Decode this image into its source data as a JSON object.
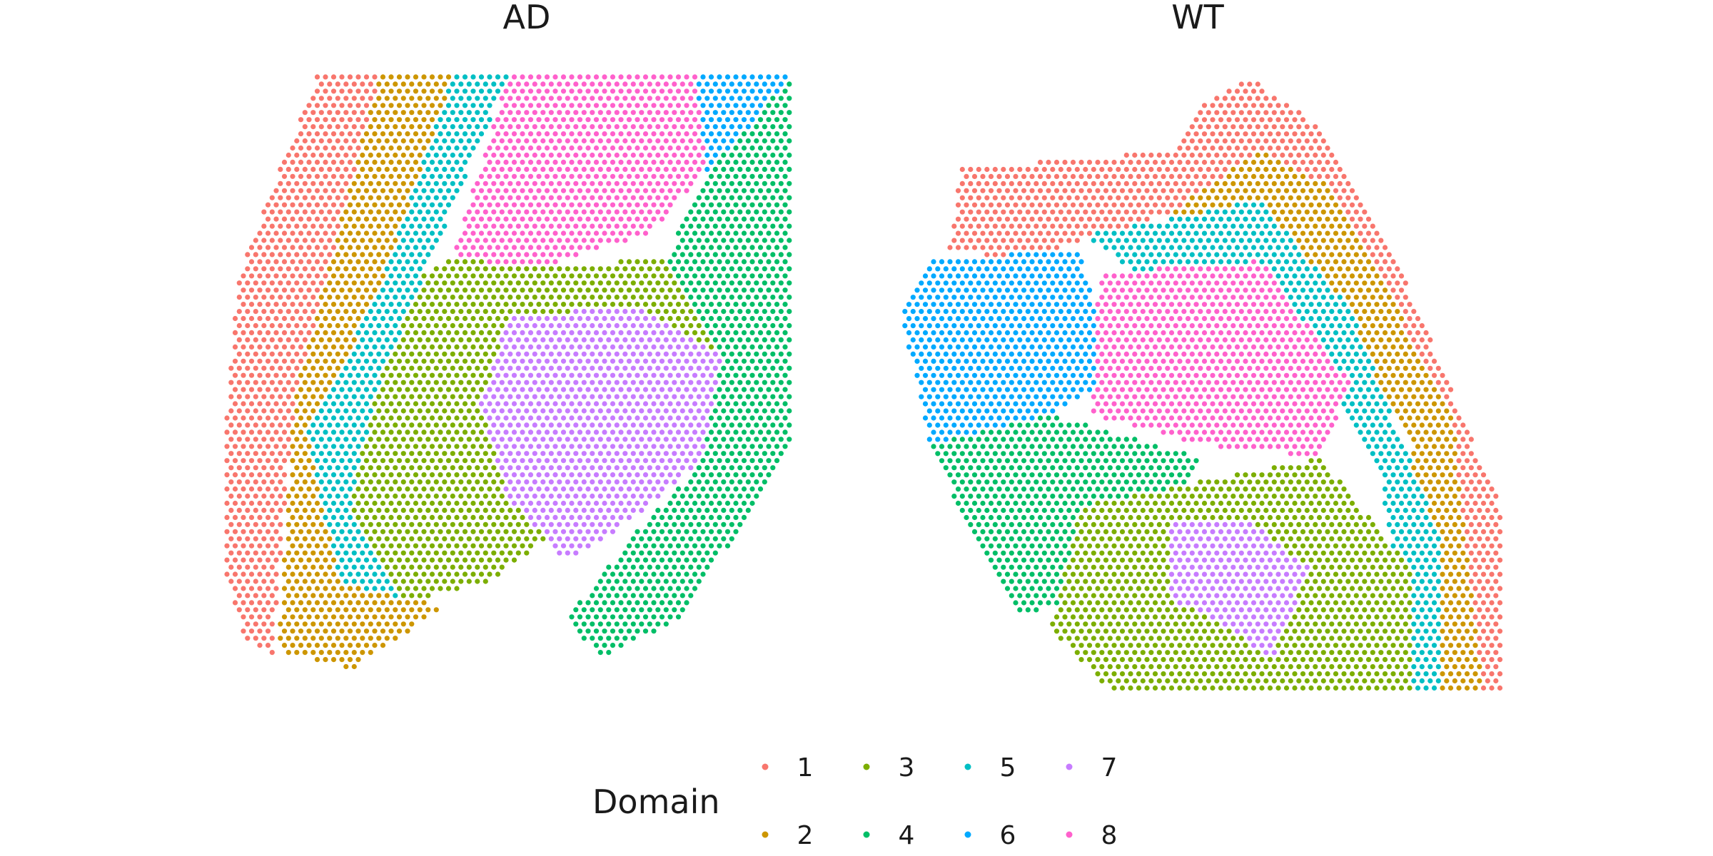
{
  "chart_data": {
    "type": "scatter",
    "title": "",
    "xlabel": "",
    "ylabel": "",
    "grid": false,
    "legend": {
      "title": "Domain",
      "placement": "bottom",
      "entries": [
        {
          "label": "1",
          "color": "#F8766D"
        },
        {
          "label": "2",
          "color": "#CD9600"
        },
        {
          "label": "3",
          "color": "#7CAE00"
        },
        {
          "label": "4",
          "color": "#00BE67"
        },
        {
          "label": "5",
          "color": "#00BFC4"
        },
        {
          "label": "6",
          "color": "#00A9FF"
        },
        {
          "label": "7",
          "color": "#C77CFF"
        },
        {
          "label": "8",
          "color": "#FF61CC"
        }
      ]
    },
    "panels": [
      {
        "title": "AD",
        "description_of_domains": "Spatial spots colored by domain label",
        "regions": [
          {
            "domain": "1",
            "polygon": [
              [
                0.16,
                0.02
              ],
              [
                0.27,
                0.02
              ],
              [
                0.12,
                0.55
              ],
              [
                0.08,
                0.98
              ],
              [
                0.03,
                0.95
              ],
              [
                -0.02,
                0.78
              ],
              [
                0.02,
                0.35
              ]
            ]
          },
          {
            "domain": "2",
            "polygon": [
              [
                0.27,
                0.02
              ],
              [
                0.4,
                0.02
              ],
              [
                0.26,
                0.4
              ],
              [
                0.2,
                0.85
              ],
              [
                0.33,
                0.88
              ],
              [
                0.38,
                0.9
              ],
              [
                0.22,
                1.0
              ],
              [
                0.09,
                0.97
              ],
              [
                0.12,
                0.55
              ]
            ]
          },
          {
            "domain": "5",
            "polygon": [
              [
                0.4,
                0.02
              ],
              [
                0.5,
                0.02
              ],
              [
                0.35,
                0.35
              ],
              [
                0.22,
                0.74
              ],
              [
                0.3,
                0.88
              ],
              [
                0.2,
                0.86
              ],
              [
                0.14,
                0.6
              ],
              [
                0.26,
                0.4
              ]
            ]
          },
          {
            "domain": "8",
            "polygon": [
              [
                0.5,
                0.02
              ],
              [
                0.83,
                0.02
              ],
              [
                0.85,
                0.18
              ],
              [
                0.75,
                0.28
              ],
              [
                0.55,
                0.34
              ],
              [
                0.4,
                0.32
              ]
            ]
          },
          {
            "domain": "6",
            "polygon": [
              [
                0.83,
                0.02
              ],
              [
                1.0,
                0.02
              ],
              [
                0.93,
                0.1
              ],
              [
                0.85,
                0.18
              ]
            ]
          },
          {
            "domain": "3",
            "polygon": [
              [
                0.4,
                0.32
              ],
              [
                0.55,
                0.34
              ],
              [
                0.78,
                0.32
              ],
              [
                0.9,
                0.45
              ],
              [
                0.72,
                0.6
              ],
              [
                0.55,
                0.8
              ],
              [
                0.46,
                0.86
              ],
              [
                0.35,
                0.88
              ],
              [
                0.3,
                0.88
              ],
              [
                0.22,
                0.74
              ],
              [
                0.26,
                0.55
              ],
              [
                0.35,
                0.35
              ]
            ]
          },
          {
            "domain": "7",
            "polygon": [
              [
                0.5,
                0.42
              ],
              [
                0.72,
                0.4
              ],
              [
                0.88,
                0.48
              ],
              [
                0.84,
                0.66
              ],
              [
                0.68,
                0.78
              ],
              [
                0.6,
                0.82
              ],
              [
                0.5,
                0.72
              ],
              [
                0.45,
                0.56
              ]
            ]
          },
          {
            "domain": "4",
            "polygon": [
              [
                0.93,
                0.1
              ],
              [
                1.0,
                0.02
              ],
              [
                1.02,
                0.6
              ],
              [
                0.9,
                0.78
              ],
              [
                0.8,
                0.92
              ],
              [
                0.66,
                0.98
              ],
              [
                0.6,
                0.92
              ],
              [
                0.72,
                0.78
              ],
              [
                0.84,
                0.66
              ],
              [
                0.88,
                0.48
              ],
              [
                0.78,
                0.32
              ],
              [
                0.85,
                0.18
              ]
            ]
          }
        ]
      },
      {
        "title": "WT",
        "description_of_domains": "Spatial spots colored by domain label",
        "regions": [
          {
            "domain": "1",
            "polygon": [
              [
                0.1,
                0.15
              ],
              [
                0.45,
                0.12
              ],
              [
                0.5,
                0.05
              ],
              [
                0.58,
                0.0
              ],
              [
                0.7,
                0.08
              ],
              [
                0.85,
                0.35
              ],
              [
                1.0,
                0.7
              ],
              [
                1.0,
                1.0
              ],
              [
                0.95,
                1.0
              ],
              [
                0.9,
                0.6
              ],
              [
                0.6,
                0.12
              ],
              [
                0.45,
                0.22
              ],
              [
                0.2,
                0.3
              ],
              [
                0.08,
                0.28
              ]
            ]
          },
          {
            "domain": "2",
            "polygon": [
              [
                0.45,
                0.22
              ],
              [
                0.6,
                0.12
              ],
              [
                0.72,
                0.18
              ],
              [
                0.92,
                0.55
              ],
              [
                0.97,
                1.0
              ],
              [
                0.9,
                1.0
              ],
              [
                0.85,
                0.6
              ],
              [
                0.62,
                0.24
              ]
            ]
          },
          {
            "domain": "5",
            "polygon": [
              [
                0.3,
                0.26
              ],
              [
                0.6,
                0.2
              ],
              [
                0.75,
                0.38
              ],
              [
                0.9,
                0.75
              ],
              [
                0.9,
                1.0
              ],
              [
                0.85,
                1.0
              ],
              [
                0.8,
                0.65
              ],
              [
                0.6,
                0.3
              ],
              [
                0.4,
                0.32
              ]
            ]
          },
          {
            "domain": "6",
            "polygon": [
              [
                0.0,
                0.38
              ],
              [
                0.05,
                0.3
              ],
              [
                0.3,
                0.28
              ],
              [
                0.35,
                0.5
              ],
              [
                0.25,
                0.55
              ],
              [
                0.05,
                0.6
              ]
            ]
          },
          {
            "domain": "8",
            "polygon": [
              [
                0.33,
                0.32
              ],
              [
                0.6,
                0.3
              ],
              [
                0.75,
                0.5
              ],
              [
                0.7,
                0.62
              ],
              [
                0.5,
                0.6
              ],
              [
                0.32,
                0.55
              ]
            ]
          },
          {
            "domain": "4",
            "polygon": [
              [
                0.05,
                0.6
              ],
              [
                0.25,
                0.55
              ],
              [
                0.5,
                0.62
              ],
              [
                0.45,
                0.75
              ],
              [
                0.3,
                0.85
              ],
              [
                0.2,
                0.88
              ],
              [
                0.12,
                0.75
              ]
            ]
          },
          {
            "domain": "3",
            "polygon": [
              [
                0.3,
                0.7
              ],
              [
                0.7,
                0.62
              ],
              [
                0.85,
                0.8
              ],
              [
                0.85,
                1.0
              ],
              [
                0.35,
                1.0
              ],
              [
                0.25,
                0.9
              ]
            ]
          },
          {
            "domain": "7",
            "polygon": [
              [
                0.45,
                0.72
              ],
              [
                0.58,
                0.72
              ],
              [
                0.68,
                0.8
              ],
              [
                0.62,
                0.95
              ],
              [
                0.55,
                0.9
              ],
              [
                0.45,
                0.85
              ]
            ]
          }
        ]
      }
    ]
  }
}
